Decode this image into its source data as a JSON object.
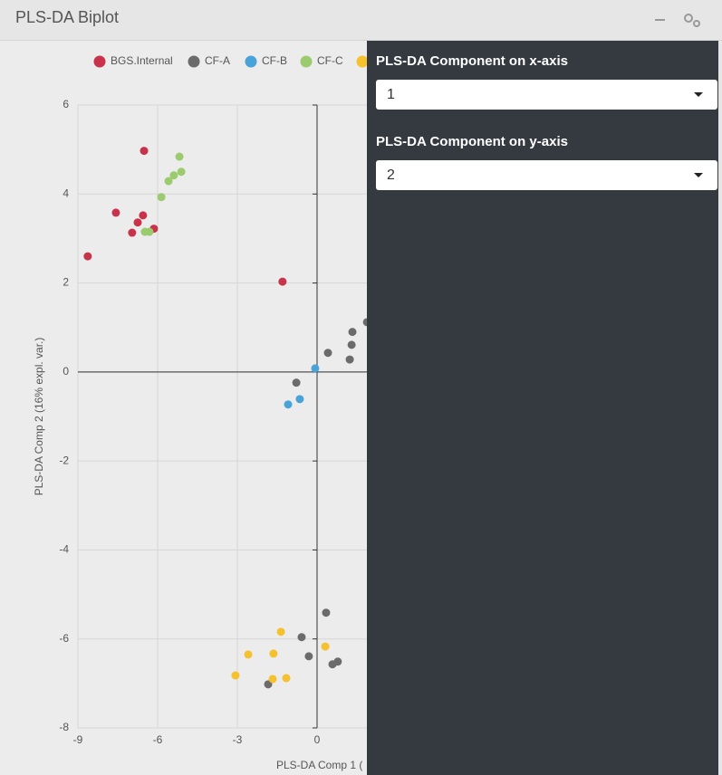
{
  "header": {
    "title": "PLS-DA Biplot"
  },
  "chart_data": {
    "type": "scatter",
    "xlabel": "PLS-DA Comp 1 (",
    "ylabel": "PLS-DA Comp 2 (16% expl. var.)",
    "xlim": [
      -9,
      9
    ],
    "xticks": [
      -9,
      -6,
      -3,
      0
    ],
    "ylim": [
      -8,
      6
    ],
    "yticks": [
      6,
      4,
      2,
      0,
      -2,
      -4,
      -6,
      -8
    ],
    "grid": true,
    "series": [
      {
        "name": "BGS.Internal",
        "color": "#c8324a",
        "x": [
          -6.51,
          -7.57,
          -6.55,
          -6.75,
          -6.96,
          -6.14,
          -8.63,
          -1.3
        ],
        "values": [
          4.97,
          3.58,
          3.52,
          3.36,
          3.13,
          3.22,
          2.6,
          2.03
        ]
      },
      {
        "name": "CF-A",
        "color": "#6b6b6b",
        "x": [
          1.88,
          1.33,
          0.41,
          1.3,
          1.23,
          -0.78,
          0.34,
          -0.58,
          -0.31,
          0.58,
          0.78,
          -1.84
        ],
        "values": [
          1.12,
          0.9,
          0.43,
          0.61,
          0.28,
          -0.24,
          -5.41,
          -5.96,
          -6.39,
          -6.57,
          -6.51,
          -7.02
        ]
      },
      {
        "name": "CF-B",
        "color": "#4aa3d8",
        "x": [
          -0.07,
          -0.65,
          -1.09
        ],
        "values": [
          0.08,
          -0.61,
          -0.73
        ]
      },
      {
        "name": "CF-C",
        "color": "#9ccb6f",
        "x": [
          -5.18,
          -5.11,
          -5.39,
          -5.59,
          -5.86,
          -6.48,
          -6.31
        ],
        "values": [
          4.84,
          4.5,
          4.42,
          4.29,
          3.93,
          3.15,
          3.15
        ]
      },
      {
        "color": "#f5c12e",
        "x": [
          -1.36,
          -2.59,
          -1.64,
          0.31,
          -3.07,
          -1.67,
          -1.16
        ],
        "values": [
          -5.84,
          -6.35,
          -6.33,
          -6.17,
          -6.82,
          -6.9,
          -6.88
        ]
      }
    ]
  },
  "controls": [
    {
      "label": "PLS-DA Component on x-axis",
      "value": "1"
    },
    {
      "label": "PLS-DA Component on y-axis",
      "value": "2"
    }
  ]
}
